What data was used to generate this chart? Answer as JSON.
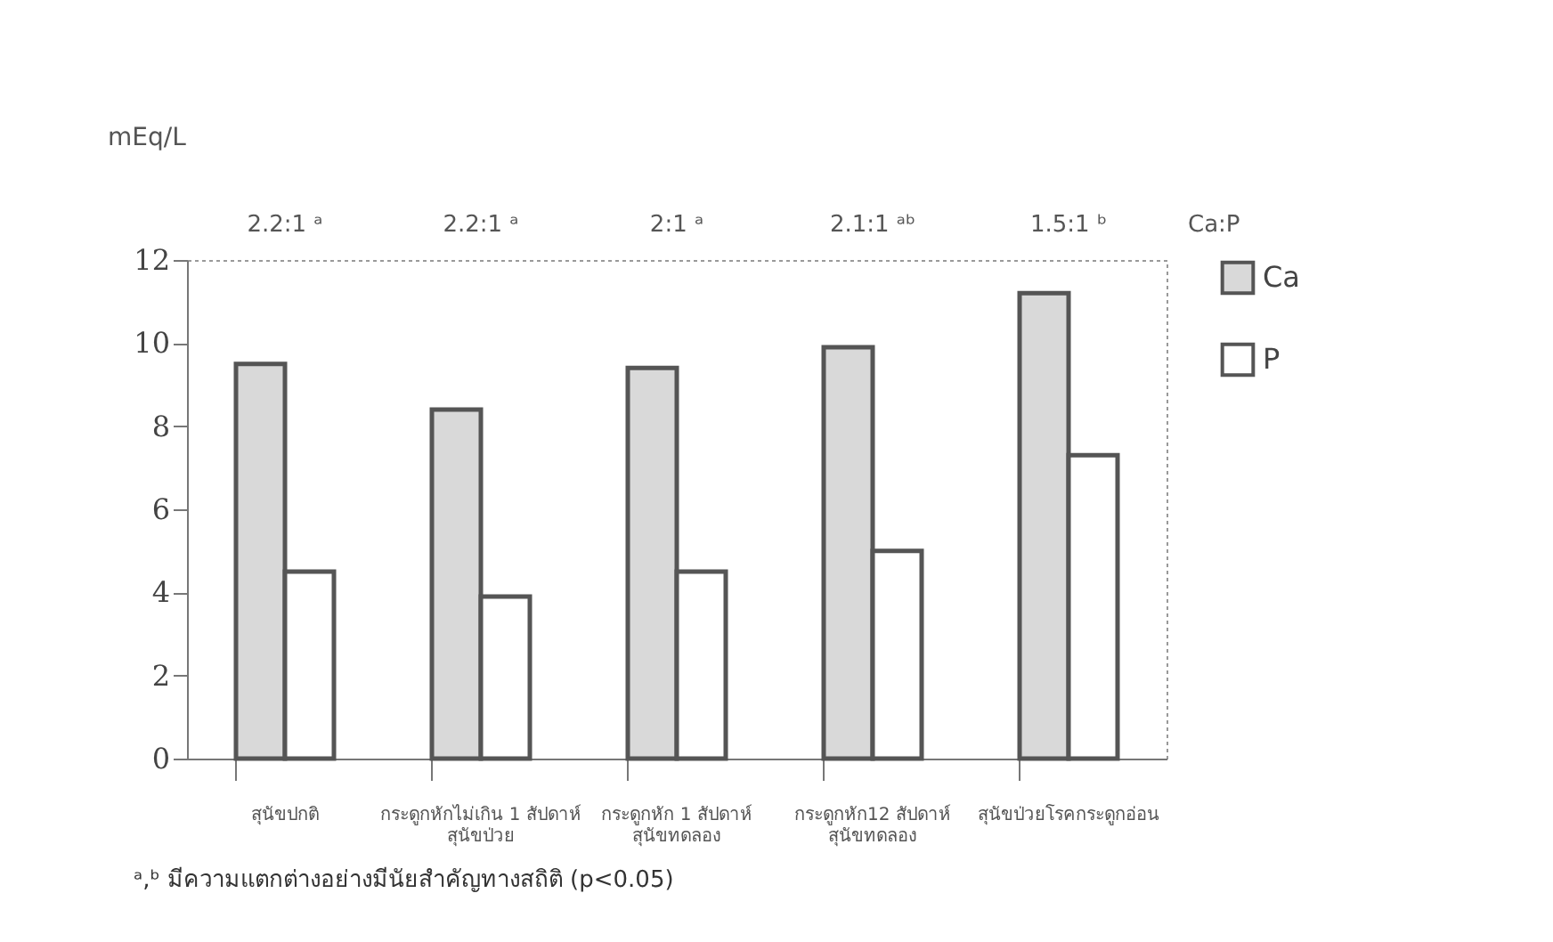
{
  "chart_data": {
    "type": "bar",
    "ylabel": "mEq/L",
    "categories": [
      "สุนัขปกติ",
      "กระดูกหักไม่เกิน 1 สัปดาห์\nสุนัขป่วย",
      "กระดูกหัก 1 สัปดาห์\nสุนัขทดลอง",
      "กระดูกหัก12 สัปดาห์\nสุนัขทดลอง",
      "สุนัขป่วยโรคกระดูกอ่อน"
    ],
    "series": [
      {
        "name": "Ca",
        "color": "#d9d9d9",
        "values": [
          9.5,
          8.4,
          9.4,
          9.9,
          11.2
        ]
      },
      {
        "name": "P",
        "color": "#ffffff",
        "values": [
          4.5,
          3.9,
          4.5,
          5.0,
          7.3
        ]
      }
    ],
    "ylim": [
      0,
      12
    ],
    "yticks": [
      0,
      2,
      4,
      6,
      8,
      10,
      12
    ],
    "grid": false,
    "legend": "right",
    "annotations": [
      "2.2:1 ᵃ",
      "2.2:1 ᵃ",
      "2:1 ᵃ",
      "2.1:1 ᵃᵇ",
      "1.5:1 ᵇ",
      "Ca:P",
      "ᵃ,ᵇ มีความแตกต่างอย่างมีนัยสำคัญทางสถิติ (p<0.05)"
    ]
  }
}
